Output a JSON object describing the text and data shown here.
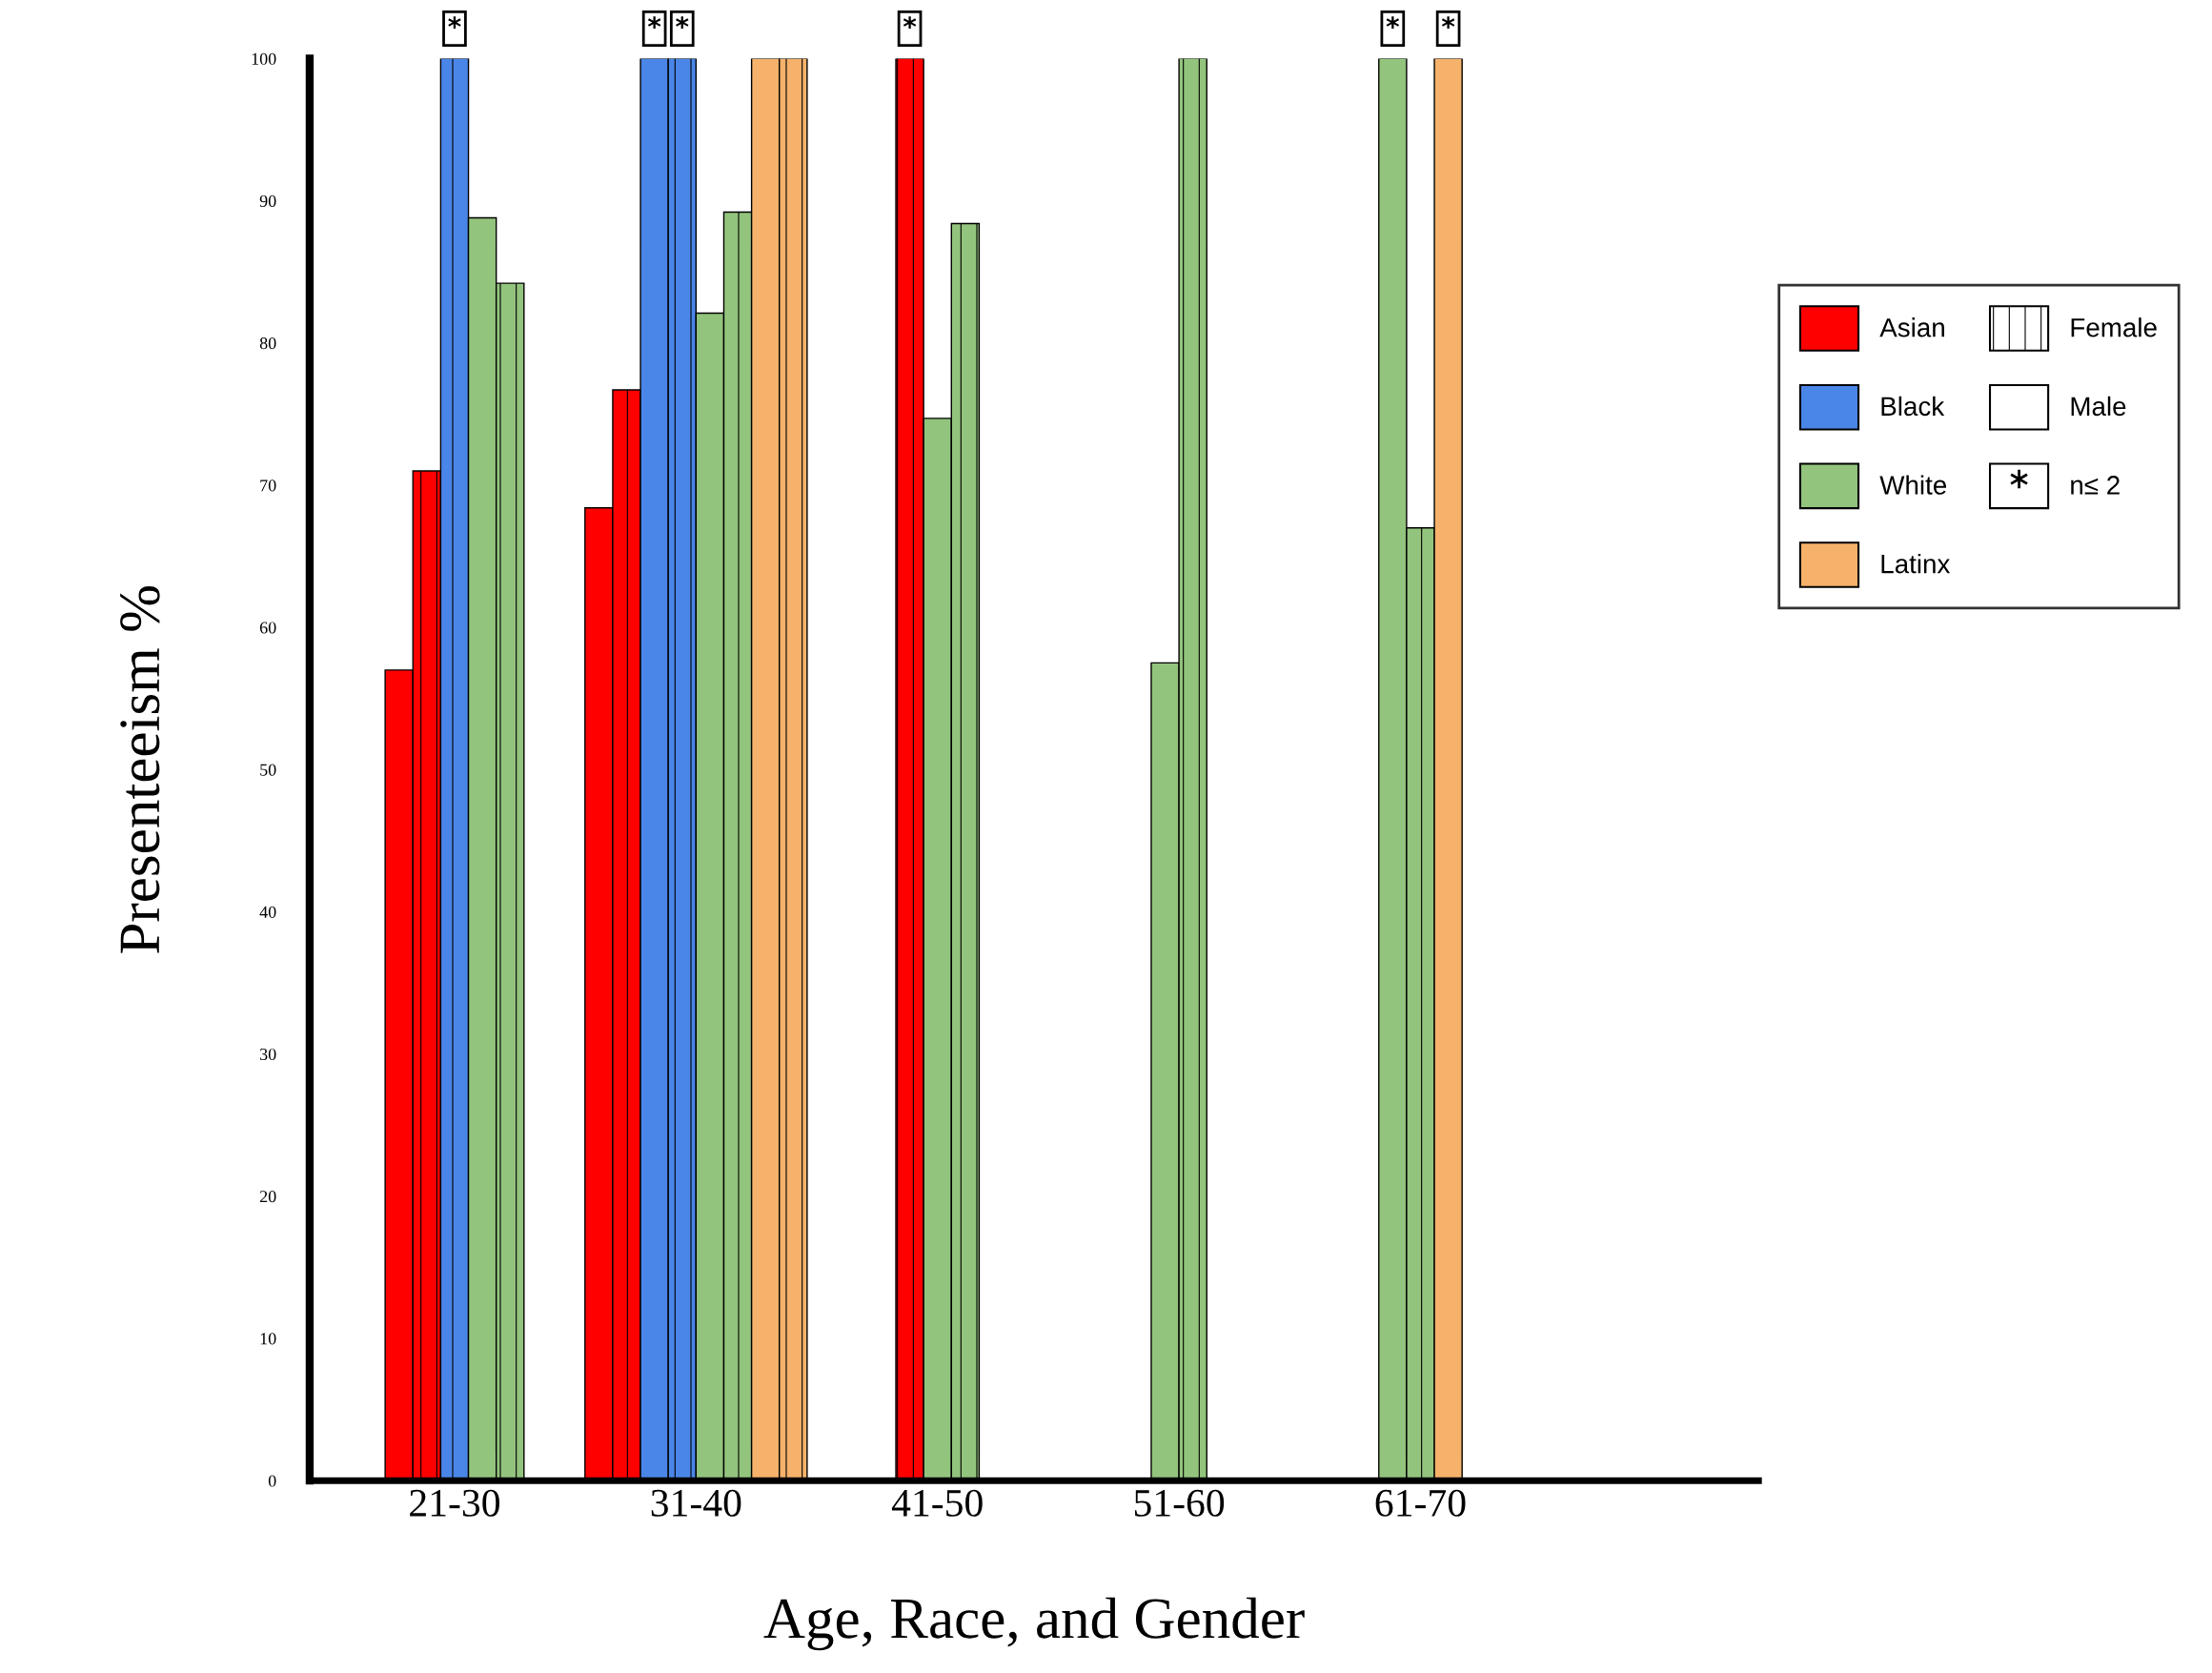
{
  "chart_data": {
    "type": "bar",
    "xlabel": "Age, Race, and Gender",
    "ylabel": "Presenteeism %",
    "categories": [
      "21-30",
      "31-40",
      "41-50",
      "51-60",
      "61-70"
    ],
    "series": [
      {
        "name": "Asian",
        "color": "#ff0000",
        "values": [
          57,
          68.4,
          null,
          null,
          null
        ]
      },
      {
        "color": "#ff0000",
        "line_style": "dashed",
        "values": [
          71,
          76.7,
          100,
          null,
          null
        ],
        "value_labels": [
          null,
          null,
          "*",
          null,
          null
        ]
      },
      {
        "name": "Black",
        "color": "#4a86e8",
        "values": [
          null,
          100,
          null,
          null,
          null
        ],
        "value_labels": [
          null,
          "*",
          null,
          null,
          null
        ]
      },
      {
        "color": "#4a86e8",
        "line_style": "dashed",
        "values": [
          100,
          100,
          null,
          null,
          null
        ],
        "value_labels": [
          "*",
          "*",
          null,
          null,
          null
        ]
      },
      {
        "name": "White",
        "color": "#93c47d",
        "values": [
          88.8,
          82.1,
          74.7,
          57.5,
          100
        ],
        "value_labels": [
          null,
          null,
          null,
          null,
          "*"
        ]
      },
      {
        "color": "#93c47d",
        "line_style": "dashed",
        "values": [
          84.2,
          89.2,
          88.4,
          100,
          67
        ]
      },
      {
        "name": "Latinx",
        "color": "#f6b26b",
        "values": [
          null,
          100,
          null,
          null,
          100
        ],
        "value_labels": [
          null,
          null,
          null,
          null,
          "*"
        ]
      },
      {
        "color": "#f6b26b",
        "line_style": "dashed",
        "values": [
          null,
          100,
          null,
          null,
          null
        ]
      }
    ],
    "annotations": [
      "Female",
      "Male",
      "n≤ 2"
    ],
    "ylim": [
      0,
      100
    ],
    "yticks": [
      0,
      10,
      20,
      30,
      40,
      50,
      60,
      70,
      80,
      90,
      100
    ],
    "grid": false,
    "legend": "right"
  }
}
